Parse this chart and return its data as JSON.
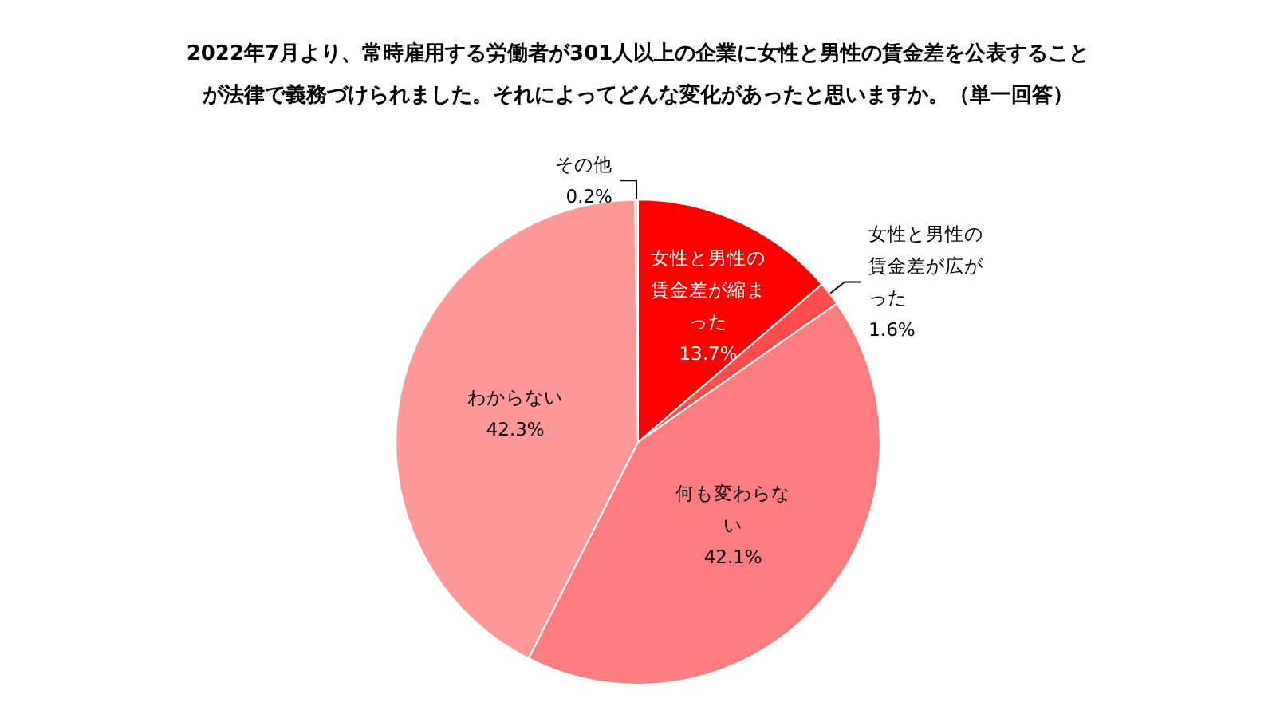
{
  "chart_data": {
    "type": "pie",
    "title": "2022年7月より、常時雇用する労働者が301人以上の企業に女性と男性の賃金差を公表することが法律で義務づけられました。それによってどんな変化があったと思いますか。（単一回答）",
    "categories": [
      "女性と男性の賃金差が縮まった",
      "女性と男性の賃金差が広がった",
      "何も変わらない",
      "わからない",
      "その他"
    ],
    "values": [
      13.7,
      1.6,
      42.1,
      42.3,
      0.2
    ],
    "value_labels": [
      "13.7%",
      "1.6%",
      "42.1%",
      "42.3%",
      "0.2%"
    ],
    "colors": [
      "#ff0000",
      "#ff4d4d",
      "#ff7c80",
      "#ff9999",
      "#ffcccc"
    ],
    "legend": false
  }
}
